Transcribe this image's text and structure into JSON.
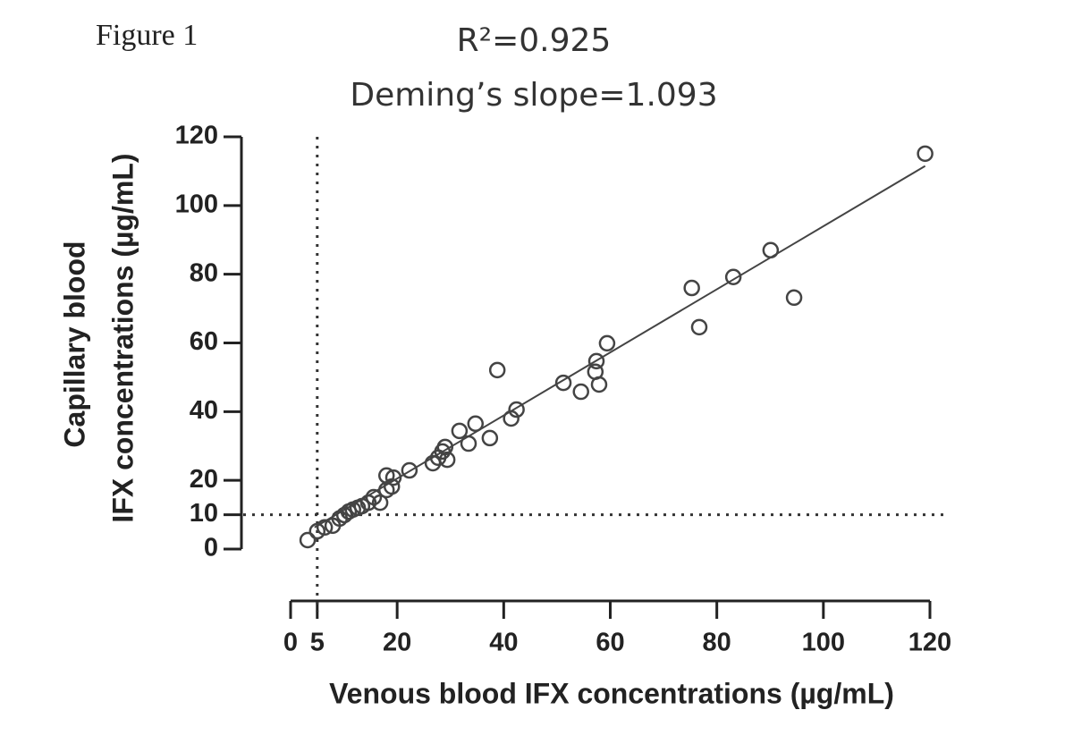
{
  "chart_data": {
    "type": "scatter",
    "figure_label": "Figure 1",
    "title": "R²=0.925",
    "subtitle": "Deming’s slope=1.093",
    "xlabel": "Venous blood  IFX concentrations (µg/mL)",
    "ylabel": [
      "Capillary blood",
      "IFX concentrations (µg/mL)"
    ],
    "xlim": [
      0,
      120
    ],
    "ylim": [
      0,
      120
    ],
    "xticks": [
      0,
      5,
      20,
      40,
      60,
      80,
      100,
      120
    ],
    "yticks": [
      0,
      10,
      20,
      40,
      60,
      80,
      100,
      120
    ],
    "color": "#444444",
    "x": [
      3.2,
      5.0,
      6.4,
      7.9,
      9.2,
      10.1,
      10.9,
      11.7,
      12.6,
      13.4,
      14.6,
      15.6,
      16.8,
      18.0,
      19.0,
      18.0,
      19.3,
      22.3,
      26.7,
      27.7,
      28.5,
      29.0,
      29.4,
      31.7,
      33.4,
      34.7,
      37.4,
      38.8,
      41.4,
      42.4,
      51.2,
      54.5,
      57.2,
      57.4,
      57.9,
      59.4,
      75.3,
      76.7,
      83.1,
      90.1,
      94.5,
      119.1
    ],
    "values": [
      2.6,
      5.2,
      6.3,
      6.8,
      8.9,
      9.9,
      10.9,
      11.5,
      12.0,
      12.5,
      13.5,
      15.1,
      13.5,
      17.2,
      18.2,
      21.4,
      20.8,
      22.9,
      25.0,
      26.6,
      28.4,
      29.7,
      26.0,
      34.4,
      30.7,
      36.5,
      32.3,
      52.1,
      38.0,
      40.6,
      48.4,
      45.8,
      51.6,
      54.7,
      47.9,
      59.9,
      76.0,
      64.6,
      79.2,
      87.0,
      73.2,
      115.1
    ],
    "fit_line": {
      "x": [
        4.5,
        119.1
      ],
      "y": [
        6.3,
        111.5
      ]
    },
    "vlines": [
      5
    ],
    "hlines": [
      10
    ]
  }
}
